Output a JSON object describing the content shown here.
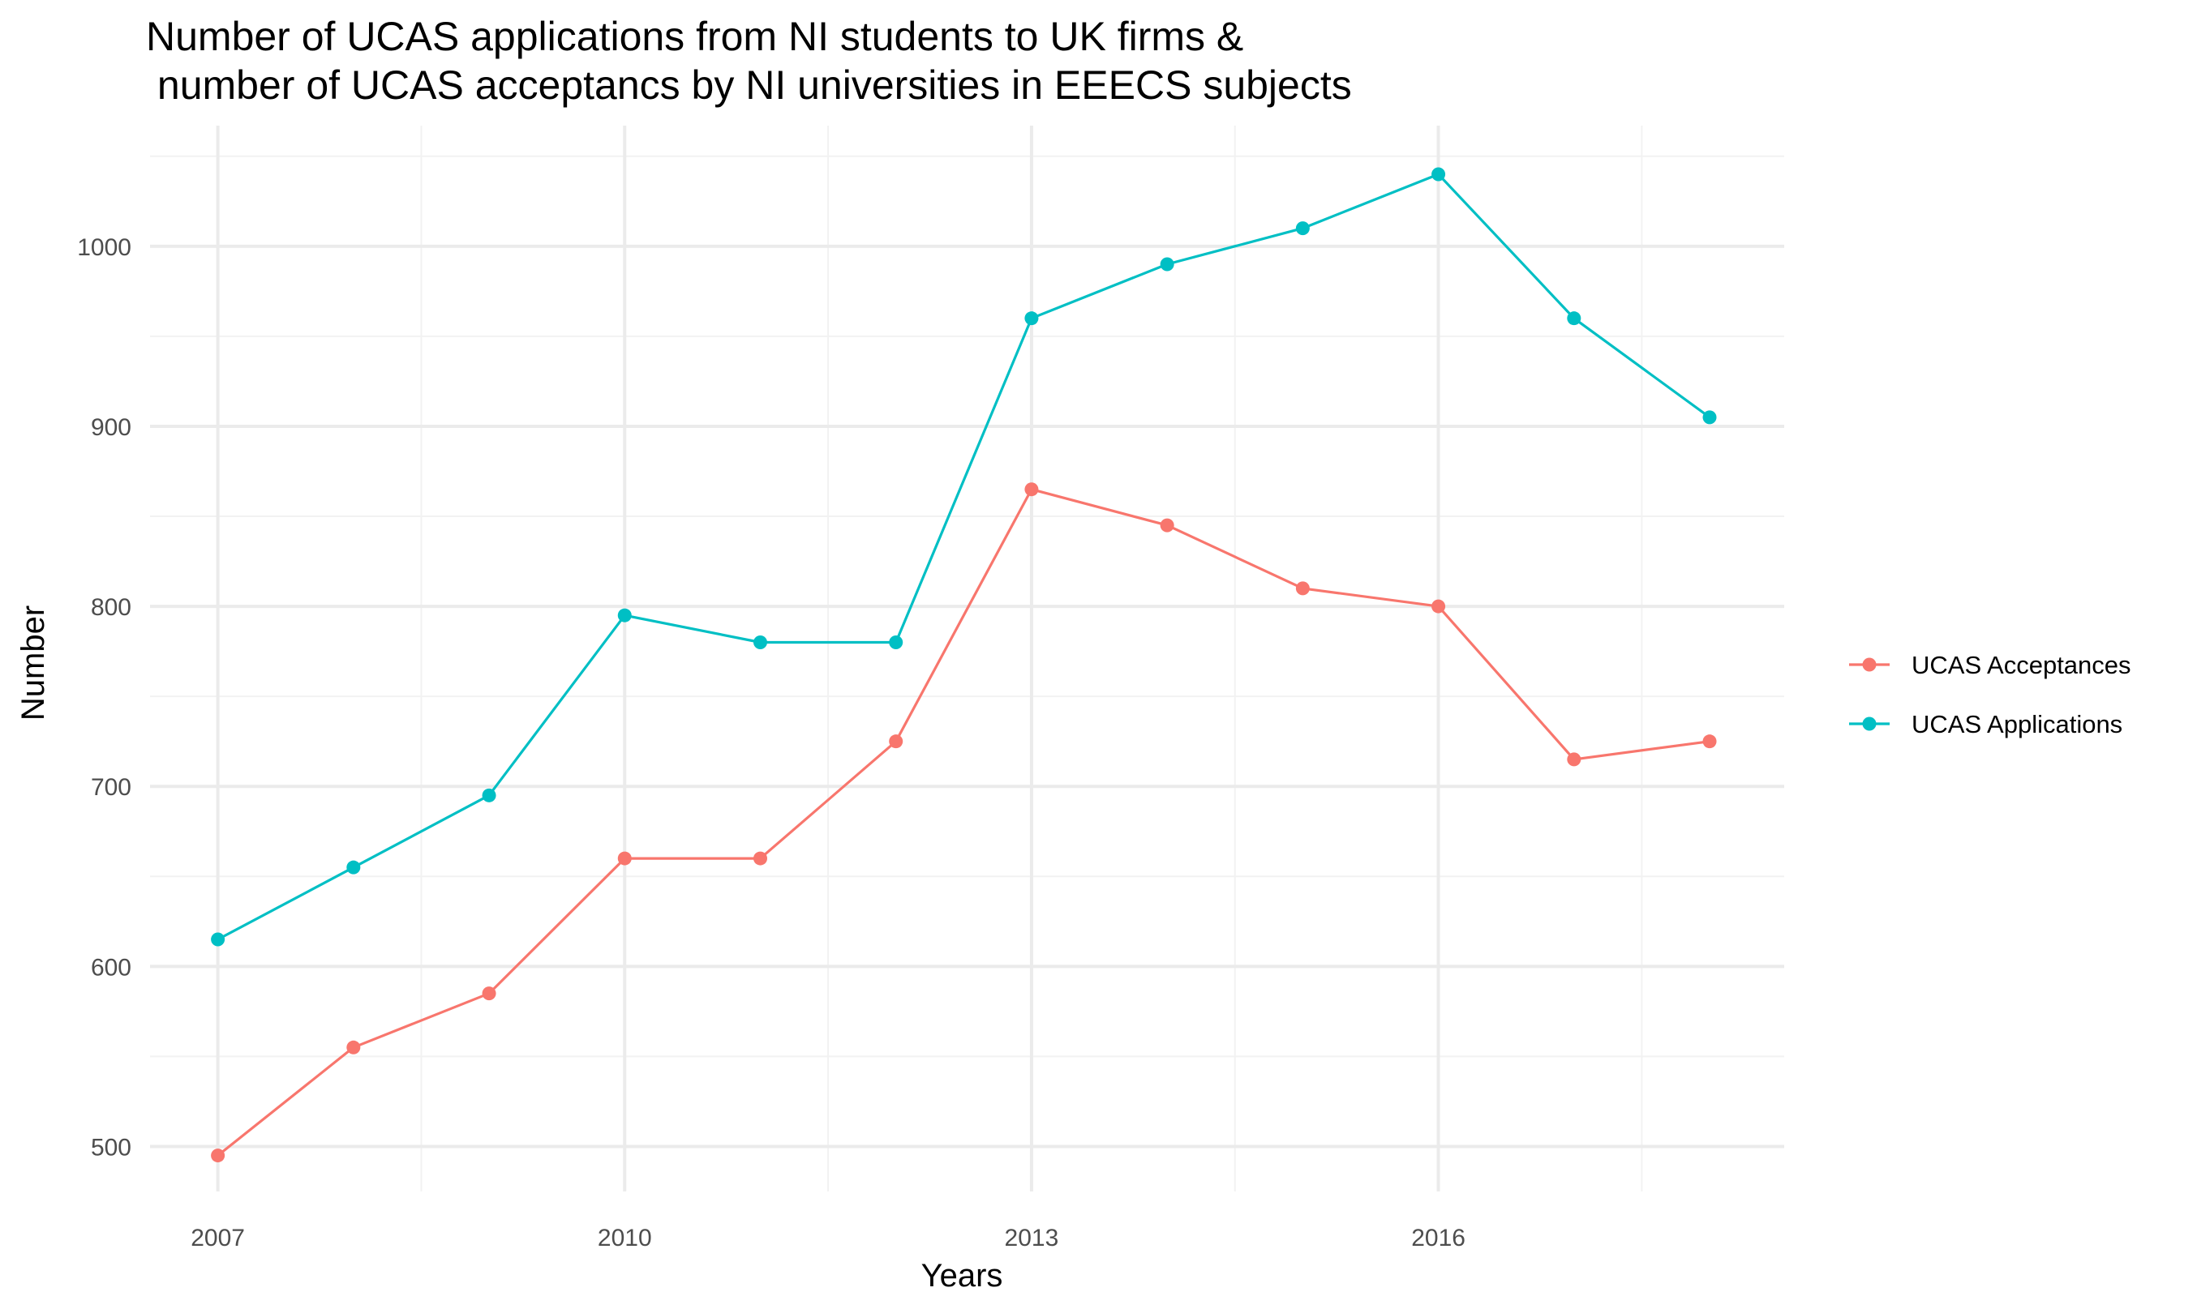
{
  "chart_data": {
    "type": "line",
    "title_lines": [
      "Number of UCAS applications from NI students to UK firms &",
      " number of UCAS acceptancs by NI universities in EEECS subjects"
    ],
    "xlabel": "Years",
    "ylabel": "Number",
    "x": [
      2007,
      2008,
      2009,
      2010,
      2011,
      2012,
      2013,
      2014,
      2015,
      2016,
      2017,
      2018
    ],
    "x_ticks": [
      "2007",
      "2010",
      "2013",
      "2016"
    ],
    "y_ticks": [
      "500",
      "600",
      "700",
      "800",
      "900",
      "1000"
    ],
    "xlim": [
      2006.5,
      2018.55
    ],
    "ylim": [
      475,
      1067
    ],
    "grid": true,
    "legend_position": "right",
    "series": [
      {
        "name": "UCAS Acceptances",
        "color": "#F8766D",
        "values": [
          495,
          555,
          585,
          660,
          660,
          725,
          865,
          845,
          810,
          800,
          715,
          725
        ]
      },
      {
        "name": "UCAS Applications",
        "color": "#00BFC4",
        "values": [
          615,
          655,
          695,
          795,
          780,
          780,
          960,
          990,
          1010,
          1040,
          960,
          905
        ]
      }
    ]
  }
}
